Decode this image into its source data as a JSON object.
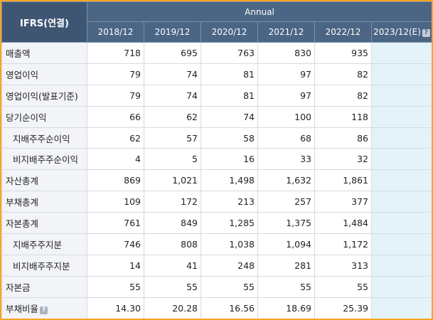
{
  "table": {
    "corner_label": "IFRS(연결)",
    "period_group": "Annual",
    "years": [
      "2018/12",
      "2019/12",
      "2020/12",
      "2021/12",
      "2022/12"
    ],
    "estimate_year": "2023/12(E)",
    "help_glyph": "?",
    "rows": [
      {
        "label": "매출액",
        "values": [
          "718",
          "695",
          "763",
          "830",
          "935"
        ]
      },
      {
        "label": "영업이익",
        "values": [
          "79",
          "74",
          "81",
          "97",
          "82"
        ]
      },
      {
        "label": "영업이익(발표기준)",
        "values": [
          "79",
          "74",
          "81",
          "97",
          "82"
        ]
      },
      {
        "label": "당기순이익",
        "values": [
          "66",
          "62",
          "74",
          "100",
          "118"
        ]
      },
      {
        "label": "지배주주순이익",
        "values": [
          "62",
          "57",
          "58",
          "68",
          "86"
        ]
      },
      {
        "label": "비지배주주순이익",
        "values": [
          "4",
          "5",
          "16",
          "33",
          "32"
        ]
      },
      {
        "label": "자산총계",
        "values": [
          "869",
          "1,021",
          "1,498",
          "1,632",
          "1,861"
        ]
      },
      {
        "label": "부채총계",
        "values": [
          "109",
          "172",
          "213",
          "257",
          "377"
        ]
      },
      {
        "label": "자본총계",
        "values": [
          "761",
          "849",
          "1,285",
          "1,375",
          "1,484"
        ]
      },
      {
        "label": "지배주주지분",
        "values": [
          "746",
          "808",
          "1,038",
          "1,094",
          "1,172"
        ]
      },
      {
        "label": "비지배주주지분",
        "values": [
          "14",
          "41",
          "248",
          "281",
          "313"
        ]
      },
      {
        "label": "자본금",
        "values": [
          "55",
          "55",
          "55",
          "55",
          "55"
        ]
      },
      {
        "label": "부채비율",
        "values": [
          "14.30",
          "20.28",
          "16.56",
          "18.69",
          "25.39"
        ]
      }
    ]
  }
}
